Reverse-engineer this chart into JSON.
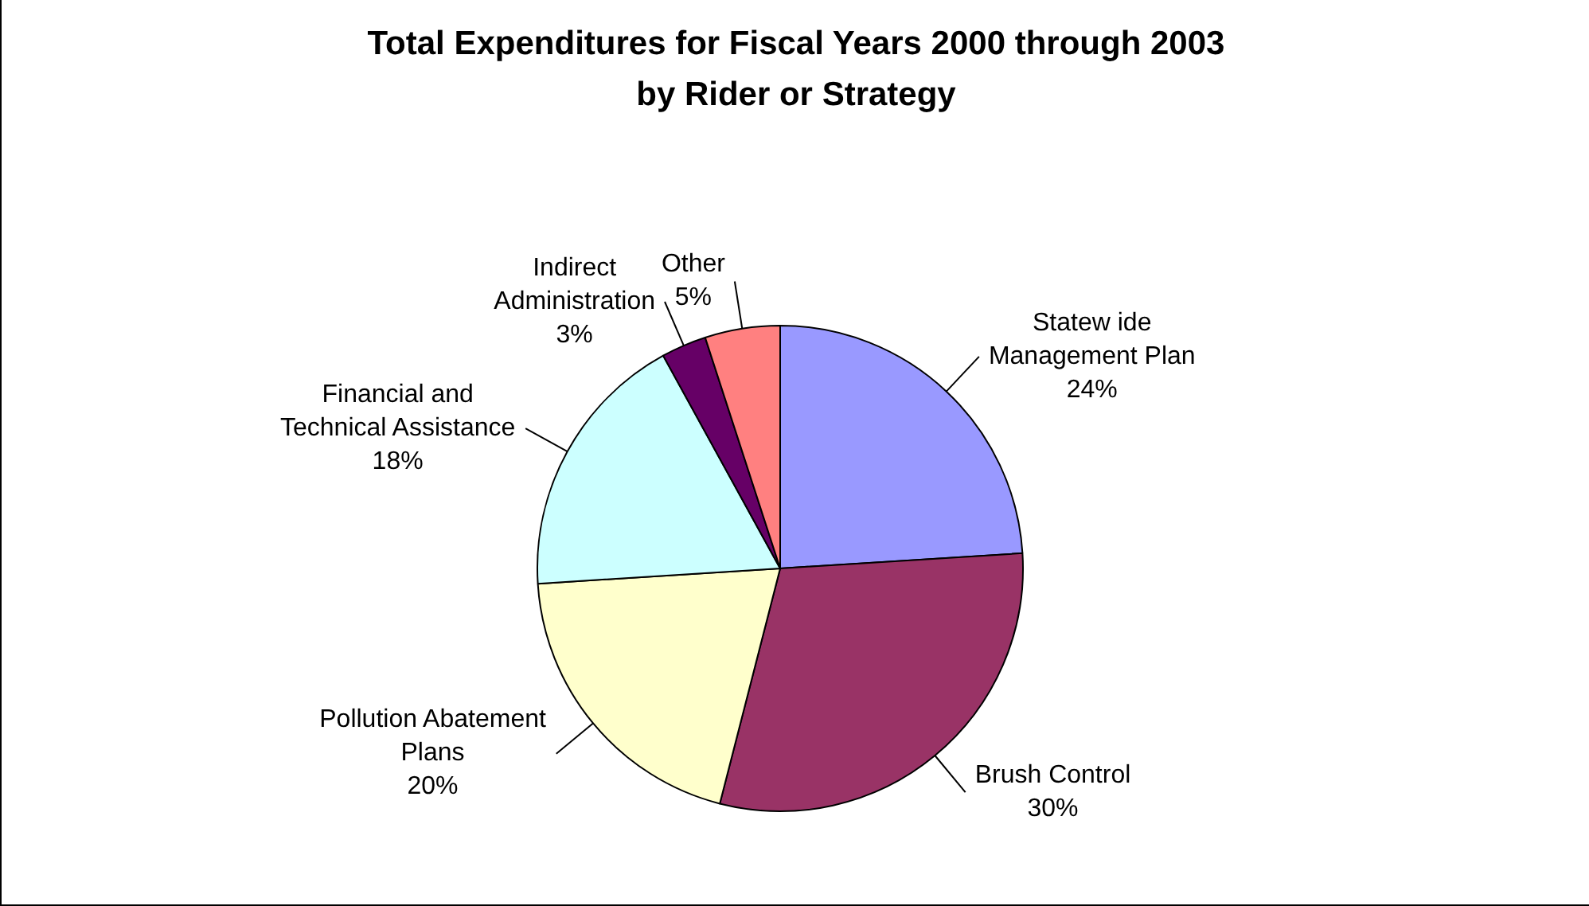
{
  "chart_data": {
    "type": "pie",
    "title": "Total Expenditures for Fiscal Years 2000 through 2003 by Rider or Strategy",
    "categories": [
      "Statew ide Management Plan",
      "Brush Control",
      "Pollution Abatement Plans",
      "Financial and Technical Assistance",
      "Indirect Administration",
      "Other"
    ],
    "values": [
      24,
      30,
      20,
      18,
      3,
      5
    ],
    "value_labels": [
      "24%",
      "30%",
      "20%",
      "18%",
      "3%",
      "5%"
    ],
    "colors": [
      "#9999ff",
      "#993366",
      "#ffffcc",
      "#ccffff",
      "#660066",
      "#ff8080"
    ],
    "legend": false
  }
}
